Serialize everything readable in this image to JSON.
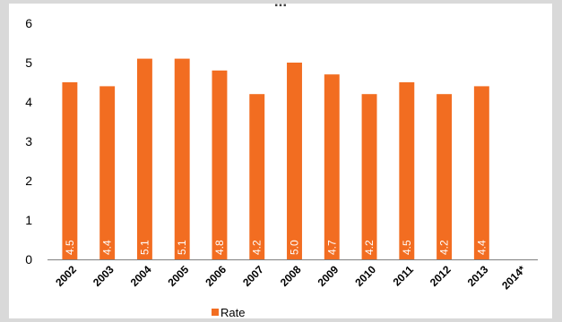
{
  "chart_data": {
    "type": "bar",
    "title": "...",
    "categories": [
      "2002",
      "2003",
      "2004",
      "2005",
      "2006",
      "2007",
      "2008",
      "2009",
      "2010",
      "2011",
      "2012",
      "2013",
      "2014*"
    ],
    "series": [
      {
        "name": "Rate",
        "values": [
          4.5,
          4.4,
          5.1,
          5.1,
          4.8,
          4.2,
          5.0,
          4.7,
          4.2,
          4.5,
          4.2,
          4.4,
          null
        ],
        "data_labels": [
          "4.5",
          "4.4",
          "5.1",
          "5.1",
          "4.8",
          "4.2",
          "5.0",
          "4.7",
          "4.2",
          "4.5",
          "4.2",
          "4.4",
          ""
        ],
        "color": "#f26d21"
      }
    ],
    "yticks": [
      "0",
      "1",
      "2",
      "3",
      "4",
      "5",
      "6"
    ],
    "ylim": [
      0,
      6
    ],
    "grid": false,
    "legend_position": "bottom"
  }
}
